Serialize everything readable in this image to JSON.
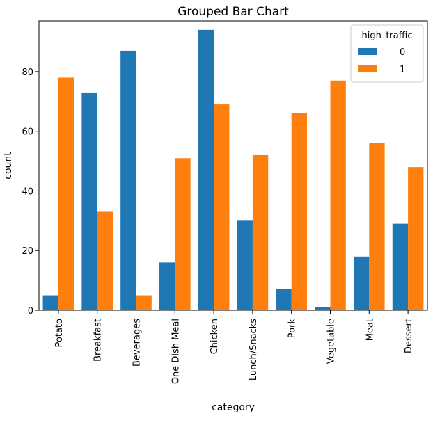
{
  "chart_data": {
    "type": "bar",
    "title": "Grouped Bar Chart",
    "xlabel": "category",
    "ylabel": "count",
    "ylim": [
      0,
      97
    ],
    "yticks": [
      0,
      20,
      40,
      60,
      80
    ],
    "categories": [
      "Potato",
      "Breakfast",
      "Beverages",
      "One Dish Meal",
      "Chicken",
      "Lunch/Snacks",
      "Pork",
      "Vegetable",
      "Meat",
      "Dessert"
    ],
    "legend": {
      "title": "high_traffic",
      "placement": "top-right"
    },
    "grid": false,
    "series": [
      {
        "name": "0",
        "color": "#1f77b4",
        "values": [
          5,
          73,
          87,
          16,
          94,
          30,
          7,
          1,
          18,
          29
        ]
      },
      {
        "name": "1",
        "color": "#ff7f0e",
        "values": [
          78,
          33,
          5,
          51,
          69,
          52,
          66,
          77,
          56,
          48
        ]
      }
    ]
  }
}
